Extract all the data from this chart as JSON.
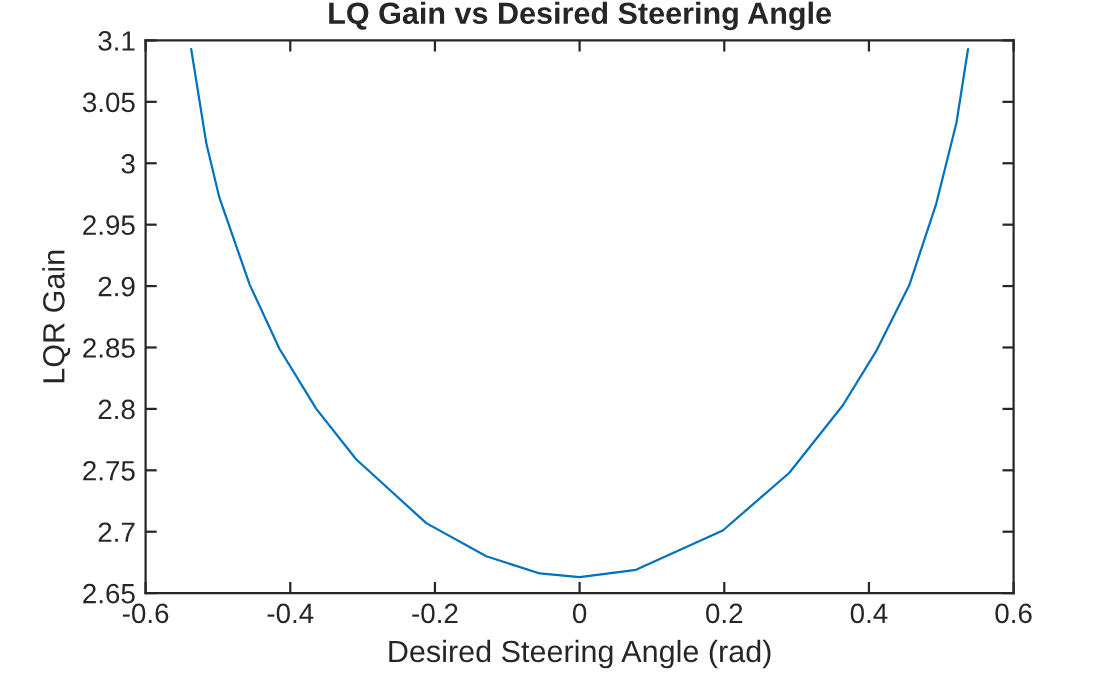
{
  "chart_data": {
    "type": "line",
    "title": "LQ Gain vs Desired Steering Angle",
    "xlabel": "Desired Steering Angle (rad)",
    "ylabel": "LQR Gain",
    "x": [
      -0.537,
      -0.516,
      -0.498,
      -0.456,
      -0.415,
      -0.364,
      -0.309,
      -0.212,
      -0.129,
      -0.055,
      0,
      0.078,
      0.198,
      0.29,
      0.364,
      0.41,
      0.456,
      0.493,
      0.521,
      0.537
    ],
    "series": [
      {
        "color": "#0072bd",
        "values": [
          3.093,
          3.016,
          2.972,
          2.901,
          2.849,
          2.8,
          2.759,
          2.707,
          2.68,
          2.666,
          2.663,
          2.669,
          2.701,
          2.748,
          2.803,
          2.847,
          2.901,
          2.967,
          3.033,
          3.093
        ]
      }
    ],
    "xlim": [
      -0.6,
      0.6
    ],
    "xticks": [
      -0.6,
      -0.4,
      -0.2,
      0,
      0.2,
      0.4,
      0.6
    ],
    "ylim": [
      2.65,
      3.1
    ],
    "yticks": [
      2.65,
      2.7,
      2.75,
      2.8,
      2.85,
      2.9,
      2.95,
      3,
      3.05,
      3.1
    ],
    "grid": false,
    "legend": false
  }
}
